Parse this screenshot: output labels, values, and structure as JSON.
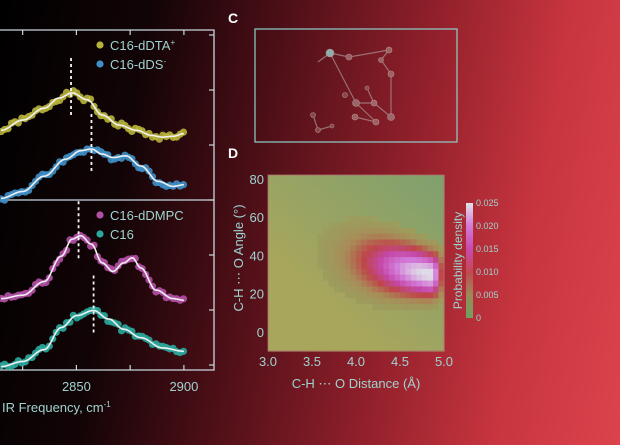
{
  "colors": {
    "yellow": "#b7b23a",
    "blue": "#3f8fc6",
    "pink": "#b34fa6",
    "teal": "#2ba79c",
    "fit": "#f0f0f0",
    "axis": "#c9d7e0",
    "label": "#9fd3cf"
  },
  "panels": {
    "c": "C",
    "d": "D"
  },
  "chart_data": [
    {
      "type": "line",
      "title": "",
      "xlabel": "IR Frequency, cm",
      "xlabel_sup": "-1",
      "ylabel": "",
      "xlim": [
        2814,
        2914
      ],
      "x_ticks": [
        2825,
        2850,
        2875,
        2900
      ],
      "x_tick_labels": [
        {
          "value": 2850,
          "label": "2850"
        },
        {
          "value": 2900,
          "label": "2900"
        }
      ],
      "subplots": [
        {
          "ylim": [
            0,
            1
          ],
          "series": [
            {
              "name": "C16-dDTA",
              "sup": "+",
              "color": "yellow",
              "peak": 2847.5,
              "values": [
                [
                  2815,
                  0.41
                ],
                [
                  2825,
                  0.47
                ],
                [
                  2835,
                  0.54
                ],
                [
                  2842,
                  0.6
                ],
                [
                  2848,
                  0.63
                ],
                [
                  2855,
                  0.59
                ],
                [
                  2862,
                  0.5
                ],
                [
                  2870,
                  0.44
                ],
                [
                  2878,
                  0.41
                ],
                [
                  2885,
                  0.38
                ],
                [
                  2890,
                  0.37
                ],
                [
                  2895,
                  0.375
                ],
                [
                  2900,
                  0.39
                ]
              ]
            },
            {
              "name": "C16-dDS",
              "sup": "-",
              "color": "blue",
              "peak": 2857,
              "values": [
                [
                  2815,
                  0.01
                ],
                [
                  2825,
                  0.05
                ],
                [
                  2835,
                  0.14
                ],
                [
                  2845,
                  0.24
                ],
                [
                  2852,
                  0.29
                ],
                [
                  2857,
                  0.3
                ],
                [
                  2862,
                  0.27
                ],
                [
                  2867,
                  0.25
                ],
                [
                  2873,
                  0.26
                ],
                [
                  2880,
                  0.2
                ],
                [
                  2888,
                  0.11
                ],
                [
                  2895,
                  0.08
                ],
                [
                  2900,
                  0.09
                ]
              ]
            }
          ]
        },
        {
          "ylim": [
            0,
            1
          ],
          "series": [
            {
              "name": "C16-dDMPC",
              "sup": "",
              "color": "pink",
              "peak": 2851,
              "values": [
                [
                  2815,
                  0.42
                ],
                [
                  2825,
                  0.44
                ],
                [
                  2835,
                  0.52
                ],
                [
                  2843,
                  0.67
                ],
                [
                  2848,
                  0.77
                ],
                [
                  2852,
                  0.79
                ],
                [
                  2857,
                  0.74
                ],
                [
                  2862,
                  0.63
                ],
                [
                  2867,
                  0.58
                ],
                [
                  2872,
                  0.63
                ],
                [
                  2876,
                  0.66
                ],
                [
                  2880,
                  0.6
                ],
                [
                  2887,
                  0.47
                ],
                [
                  2895,
                  0.42
                ],
                [
                  2900,
                  0.41
                ]
              ]
            },
            {
              "name": "C16",
              "sup": "",
              "color": "teal",
              "peak": 2858,
              "values": [
                [
                  2815,
                  0.02
                ],
                [
                  2825,
                  0.05
                ],
                [
                  2835,
                  0.12
                ],
                [
                  2843,
                  0.25
                ],
                [
                  2850,
                  0.32
                ],
                [
                  2858,
                  0.35
                ],
                [
                  2865,
                  0.3
                ],
                [
                  2872,
                  0.24
                ],
                [
                  2880,
                  0.19
                ],
                [
                  2890,
                  0.13
                ],
                [
                  2900,
                  0.11
                ]
              ]
            }
          ]
        }
      ]
    },
    {
      "type": "heatmap",
      "xlabel": "C-H ⋯ O Distance (Å)",
      "ylabel": "C-H ⋯ O Angle (°)",
      "xlim": [
        3.0,
        5.0
      ],
      "ylim": [
        -10,
        82
      ],
      "x_ticks": [
        "3.0",
        "3.5",
        "4.0",
        "4.5",
        "5.0"
      ],
      "y_ticks": [
        "0",
        "20",
        "40",
        "60",
        "80"
      ],
      "colorbar": {
        "label": "Probability density",
        "range": [
          0,
          0.025
        ],
        "ticks": [
          "0",
          "0.005",
          "0.010",
          "0.015",
          "0.020",
          "0.025"
        ]
      },
      "peak": {
        "distance": 4.85,
        "angle": 30,
        "density": 0.025
      }
    }
  ]
}
